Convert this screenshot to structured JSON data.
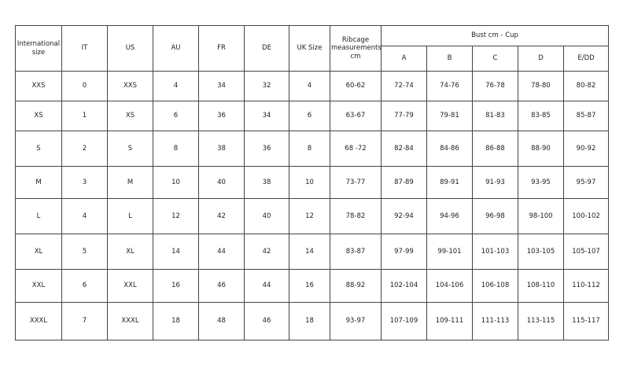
{
  "table": {
    "headers": [
      "International size",
      "IT",
      "US",
      "AU",
      "FR",
      "DE",
      "UK Size",
      "Ribcage measurements cm"
    ],
    "bust_group": "Bust cm - Cup",
    "cups": [
      "A",
      "B",
      "C",
      "D",
      "E/DD"
    ],
    "rows": [
      [
        "XXS",
        "0",
        "XXS",
        "4",
        "34",
        "32",
        "4",
        "60-62",
        "72-74",
        "74-76",
        "76-78",
        "78-80",
        "80-82"
      ],
      [
        "XS",
        "1",
        "XS",
        "6",
        "36",
        "34",
        "6",
        "63-67",
        "77-79",
        "79-81",
        "81-83",
        "83-85",
        "85-87"
      ],
      [
        "S",
        "2",
        "S",
        "8",
        "38",
        "36",
        "8",
        "68 -72",
        "82-84",
        "84-86",
        "86-88",
        "88-90",
        "90-92"
      ],
      [
        "M",
        "3",
        "M",
        "10",
        "40",
        "38",
        "10",
        "73-77",
        "87-89",
        "89-91",
        "91-93",
        "93-95",
        "95-97"
      ],
      [
        "L",
        "4",
        "L",
        "12",
        "42",
        "40",
        "12",
        "78-82",
        "92-94",
        "94-96",
        "96-98",
        "98-100",
        "100-102"
      ],
      [
        "XL",
        "5",
        "XL",
        "14",
        "44",
        "42",
        "14",
        "83-87",
        "97-99",
        "99-101",
        "101-103",
        "103-105",
        "105-107"
      ],
      [
        "XXL",
        "6",
        "XXL",
        "16",
        "46",
        "44",
        "16",
        "88-92",
        "102-104",
        "104-106",
        "106-108",
        "108-110",
        "110-112"
      ],
      [
        "XXXL",
        "7",
        "XXXL",
        "18",
        "48",
        "46",
        "18",
        "93-97",
        "107-109",
        "109-111",
        "111-113",
        "113-115",
        "115-117"
      ]
    ]
  }
}
